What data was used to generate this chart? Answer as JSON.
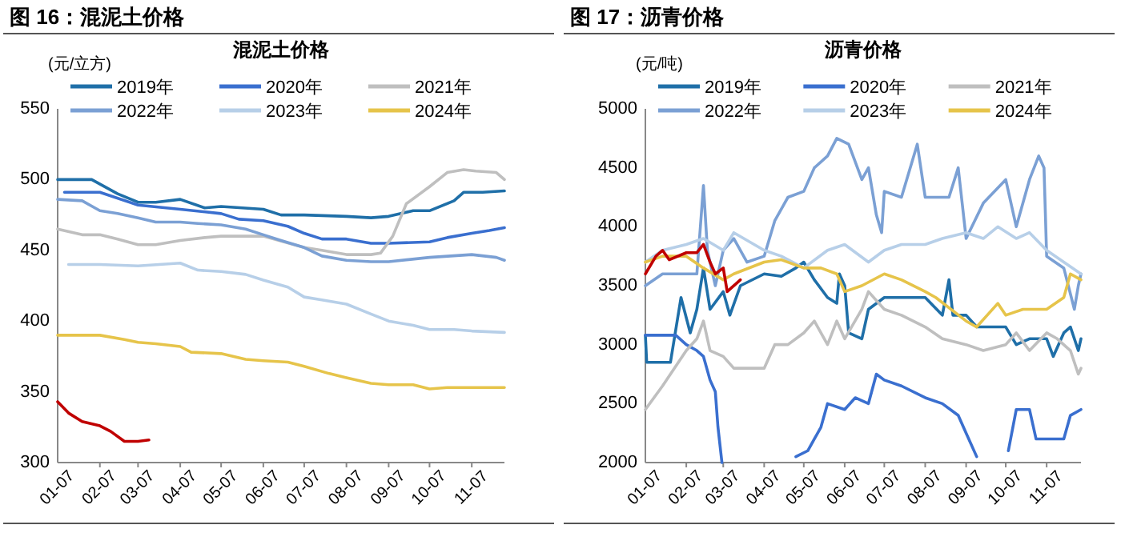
{
  "chart_data": [
    {
      "type": "line",
      "title": "图 16：混泥土价格",
      "subtitle": "混泥土价格",
      "ylabel": "(元/立方)",
      "legend": "top",
      "grid": false,
      "marker": "none",
      "line_style": "solid",
      "xlim": [
        "--01-07",
        "--12-01"
      ],
      "ylim": [
        300,
        550
      ],
      "yticks": [
        300,
        350,
        400,
        450,
        500,
        550
      ],
      "xticks": [
        {
          "value": "--01-07",
          "label": "01-07"
        },
        {
          "value": "--02-07",
          "label": "02-07"
        },
        {
          "value": "--03-07",
          "label": "03-07"
        },
        {
          "value": "--04-07",
          "label": "04-07"
        },
        {
          "value": "--05-07",
          "label": "05-07"
        },
        {
          "value": "--06-07",
          "label": "06-07"
        },
        {
          "value": "--07-07",
          "label": "07-07"
        },
        {
          "value": "--08-07",
          "label": "08-07"
        },
        {
          "value": "--09-07",
          "label": "09-07"
        },
        {
          "value": "--10-07",
          "label": "10-07"
        },
        {
          "value": "--11-07",
          "label": "11-07"
        }
      ],
      "series": [
        {
          "name": "2019年",
          "color": "#1f6fa8",
          "x": [
            "--01-07",
            "--02-01",
            "--02-20",
            "--03-07",
            "--03-20",
            "--04-07",
            "--04-25",
            "--05-07",
            "--06-07",
            "--06-20",
            "--07-07",
            "--08-07",
            "--08-25",
            "--09-07",
            "--09-25",
            "--10-07",
            "--10-25",
            "--11-01",
            "--11-15",
            "--12-01"
          ],
          "values": [
            500,
            500,
            490,
            484,
            484,
            486,
            480,
            481,
            479,
            475,
            475,
            474,
            473,
            474,
            478,
            478,
            485,
            491,
            491,
            492
          ]
        },
        {
          "name": "2020年",
          "color": "#3a6fcf",
          "x": [
            "--01-12",
            "--02-07",
            "--03-07",
            "--04-07",
            "--05-07",
            "--05-20",
            "--06-07",
            "--06-25",
            "--07-07",
            "--07-20",
            "--08-07",
            "--08-25",
            "--09-07",
            "--10-07",
            "--10-20",
            "--11-07",
            "--11-20",
            "--12-01"
          ],
          "values": [
            491,
            491,
            482,
            479,
            476,
            472,
            471,
            467,
            462,
            458,
            458,
            455,
            455,
            456,
            459,
            462,
            464,
            466
          ]
        },
        {
          "name": "2021年",
          "color": "#bfbfbf",
          "x": [
            "--01-07",
            "--01-25",
            "--02-07",
            "--02-20",
            "--03-07",
            "--03-20",
            "--04-07",
            "--04-25",
            "--05-07",
            "--06-07",
            "--07-07",
            "--07-20",
            "--08-07",
            "--08-25",
            "--09-01",
            "--09-10",
            "--09-20",
            "--10-07",
            "--10-20",
            "--11-01",
            "--11-10",
            "--11-25",
            "--12-01"
          ],
          "values": [
            465,
            461,
            461,
            458,
            454,
            454,
            457,
            459,
            460,
            460,
            452,
            450,
            447,
            447,
            448,
            460,
            483,
            495,
            505,
            507,
            506,
            505,
            500
          ]
        },
        {
          "name": "2022年",
          "color": "#7ba0d4",
          "x": [
            "--01-07",
            "--01-25",
            "--02-07",
            "--02-20",
            "--03-07",
            "--03-20",
            "--04-07",
            "--04-20",
            "--05-07",
            "--05-25",
            "--06-07",
            "--06-20",
            "--07-07",
            "--07-20",
            "--08-07",
            "--08-25",
            "--09-07",
            "--10-07",
            "--11-07",
            "--11-25",
            "--12-01"
          ],
          "values": [
            486,
            485,
            478,
            476,
            473,
            470,
            470,
            469,
            468,
            465,
            461,
            457,
            452,
            446,
            443,
            442,
            442,
            445,
            447,
            445,
            443
          ]
        },
        {
          "name": "2023年",
          "color": "#b7cfe8",
          "x": [
            "--01-15",
            "--02-07",
            "--03-07",
            "--04-07",
            "--04-20",
            "--05-07",
            "--05-25",
            "--06-07",
            "--06-25",
            "--07-07",
            "--07-20",
            "--08-07",
            "--08-25",
            "--09-07",
            "--09-25",
            "--10-07",
            "--10-25",
            "--11-07",
            "--12-01"
          ],
          "values": [
            440,
            440,
            439,
            441,
            436,
            435,
            433,
            429,
            424,
            417,
            415,
            412,
            405,
            400,
            397,
            394,
            394,
            393,
            392
          ]
        },
        {
          "name": "2024年",
          "color": "#e6c44a",
          "x": [
            "--01-07",
            "--02-07",
            "--02-25",
            "--03-07",
            "--03-20",
            "--04-07",
            "--04-15",
            "--05-07",
            "--05-25",
            "--06-07",
            "--06-25",
            "--07-07",
            "--07-25",
            "--08-07",
            "--08-25",
            "--09-07",
            "--09-25",
            "--10-07",
            "--10-20",
            "--11-07",
            "--12-01"
          ],
          "values": [
            390,
            390,
            387,
            385,
            384,
            382,
            378,
            377,
            373,
            372,
            371,
            368,
            363,
            360,
            356,
            355,
            355,
            352,
            353,
            353,
            353
          ]
        },
        {
          "color": "#c00000",
          "x": [
            "--01-07",
            "--01-15",
            "--01-25",
            "--02-07",
            "--02-15",
            "--02-25",
            "--03-07",
            "--03-15"
          ],
          "values": [
            343,
            335,
            329,
            326,
            322,
            315,
            315,
            316
          ]
        }
      ]
    },
    {
      "type": "line",
      "title": "图 17：沥青价格",
      "subtitle": "沥青价格",
      "ylabel": "(元/吨)",
      "legend": "top",
      "grid": false,
      "marker": "none",
      "line_style": "solid",
      "xlim": [
        "--01-07",
        "--12-03"
      ],
      "ylim": [
        2000,
        5000
      ],
      "yticks": [
        2000,
        2500,
        3000,
        3500,
        4000,
        4500,
        5000
      ],
      "xticks": [
        {
          "value": "--01-07",
          "label": "01-07"
        },
        {
          "value": "--02-07",
          "label": "02-07"
        },
        {
          "value": "--03-07",
          "label": "03-07"
        },
        {
          "value": "--04-07",
          "label": "04-07"
        },
        {
          "value": "--05-07",
          "label": "05-07"
        },
        {
          "value": "--06-07",
          "label": "06-07"
        },
        {
          "value": "--07-07",
          "label": "07-07"
        },
        {
          "value": "--08-07",
          "label": "08-07"
        },
        {
          "value": "--09-07",
          "label": "09-07"
        },
        {
          "value": "--10-07",
          "label": "10-07"
        },
        {
          "value": "--11-07",
          "label": "11-07"
        }
      ],
      "series": [
        {
          "name": "2019年",
          "color": "#1f6fa8",
          "x": [
            "--01-07",
            "--01-08",
            "--01-26",
            "--02-03",
            "--02-10",
            "--02-15",
            "--02-20",
            "--02-25",
            "--03-07",
            "--03-12",
            "--03-20",
            "--04-07",
            "--04-20",
            "--05-01",
            "--05-07",
            "--05-15",
            "--05-25",
            "--06-01",
            "--06-03",
            "--06-07",
            "--06-10",
            "--06-20",
            "--06-25",
            "--07-07",
            "--07-20",
            "--08-07",
            "--08-20",
            "--08-25",
            "--08-28",
            "--09-07",
            "--09-15",
            "--10-07",
            "--10-15",
            "--10-25",
            "--11-07",
            "--11-12",
            "--11-20",
            "--11-25",
            "--12-01",
            "--12-03"
          ],
          "values": [
            3080,
            2850,
            2850,
            3400,
            3100,
            3300,
            3650,
            3300,
            3450,
            3250,
            3500,
            3600,
            3580,
            3650,
            3700,
            3550,
            3400,
            3350,
            3600,
            3500,
            3100,
            3050,
            3300,
            3400,
            3400,
            3400,
            3250,
            3550,
            3250,
            3250,
            3150,
            3150,
            3000,
            3050,
            3050,
            2900,
            3100,
            3150,
            2950,
            3050
          ]
        },
        {
          "name": "2020年",
          "color": "#3a6fcf",
          "x": [
            "--01-07",
            "--01-30",
            "--02-07",
            "--02-15",
            "--02-20",
            "--02-25",
            "--03-01",
            "--03-03",
            "--03-06",
            "--03-15",
            "--04-25",
            "--05-01",
            "--05-10",
            "--05-20",
            "--05-25",
            "--06-07",
            "--06-15",
            "--06-25",
            "--07-01",
            "--07-07",
            "--07-20",
            "--08-07",
            "--08-20",
            "--09-01",
            "--09-07",
            "--09-15",
            "--09-20",
            "--10-01",
            "--10-09",
            "--10-15",
            "--10-25",
            "--10-30",
            "--11-07",
            "--11-20",
            "--11-25",
            "--12-03"
          ],
          "values": [
            3080,
            3080,
            3000,
            2950,
            2900,
            2700,
            2600,
            2300,
            2000,
            null,
            null,
            2050,
            2100,
            2300,
            2500,
            2450,
            2550,
            2500,
            2750,
            2700,
            2650,
            2550,
            2500,
            2400,
            2250,
            2050,
            null,
            null,
            2100,
            2450,
            2450,
            2200,
            2200,
            2200,
            2400,
            2450
          ]
        },
        {
          "name": "2021年",
          "color": "#bfbfbf",
          "x": [
            "--01-07",
            "--01-20",
            "--02-07",
            "--02-15",
            "--02-20",
            "--02-25",
            "--03-07",
            "--03-15",
            "--03-25",
            "--04-07",
            "--04-15",
            "--04-25",
            "--05-07",
            "--05-15",
            "--05-25",
            "--06-01",
            "--06-07",
            "--06-20",
            "--06-25",
            "--07-07",
            "--07-20",
            "--08-07",
            "--08-20",
            "--09-07",
            "--09-20",
            "--10-07",
            "--10-15",
            "--10-25",
            "--11-07",
            "--11-15",
            "--11-25",
            "--12-01",
            "--12-03"
          ],
          "values": [
            2450,
            2650,
            2950,
            3050,
            3200,
            2950,
            2900,
            2800,
            2800,
            2800,
            3000,
            3000,
            3100,
            3200,
            3000,
            3200,
            3050,
            3300,
            3450,
            3300,
            3250,
            3150,
            3050,
            3000,
            2950,
            3000,
            3100,
            2950,
            3100,
            3050,
            2950,
            2750,
            2800
          ]
        },
        {
          "name": "2022年",
          "color": "#7ba0d4",
          "x": [
            "--01-07",
            "--01-20",
            "--02-07",
            "--02-15",
            "--02-20",
            "--02-23",
            "--03-01",
            "--03-07",
            "--03-15",
            "--03-25",
            "--04-07",
            "--04-15",
            "--04-25",
            "--05-07",
            "--05-15",
            "--05-25",
            "--06-01",
            "--06-10",
            "--06-20",
            "--06-25",
            "--07-01",
            "--07-05",
            "--07-07",
            "--07-20",
            "--08-01",
            "--08-07",
            "--08-25",
            "--09-01",
            "--09-07",
            "--09-20",
            "--10-07",
            "--10-15",
            "--10-25",
            "--11-01",
            "--11-05",
            "--11-07",
            "--11-20",
            "--11-28",
            "--12-01",
            "--12-03"
          ],
          "values": [
            3500,
            3600,
            3600,
            3600,
            4350,
            3800,
            3500,
            3800,
            3900,
            3700,
            3750,
            4050,
            4250,
            4300,
            4500,
            4600,
            4750,
            4700,
            4400,
            4500,
            4100,
            3950,
            4300,
            4250,
            4700,
            4250,
            4250,
            4500,
            3900,
            4200,
            4400,
            4000,
            4400,
            4600,
            4500,
            3750,
            3650,
            3300,
            3500,
            3600
          ]
        },
        {
          "name": "2023年",
          "color": "#b7cfe8",
          "x": [
            "--01-07",
            "--01-20",
            "--02-07",
            "--02-20",
            "--03-07",
            "--03-15",
            "--04-07",
            "--04-20",
            "--05-07",
            "--05-25",
            "--06-07",
            "--06-25",
            "--07-07",
            "--07-20",
            "--08-07",
            "--08-20",
            "--09-07",
            "--09-20",
            "--10-01",
            "--10-15",
            "--10-25",
            "--11-07",
            "--11-20",
            "--12-03"
          ],
          "values": [
            3700,
            3800,
            3850,
            3900,
            3800,
            3950,
            3800,
            3750,
            3650,
            3800,
            3850,
            3700,
            3800,
            3850,
            3850,
            3900,
            3950,
            3900,
            4000,
            3900,
            3950,
            3800,
            3700,
            3600
          ]
        },
        {
          "name": "2024年",
          "color": "#e6c44a",
          "x": [
            "--01-07",
            "--01-20",
            "--02-07",
            "--02-20",
            "--03-07",
            "--03-15",
            "--04-07",
            "--04-20",
            "--05-07",
            "--05-20",
            "--06-01",
            "--06-07",
            "--06-20",
            "--07-07",
            "--07-20",
            "--08-07",
            "--08-15",
            "--09-07",
            "--09-15",
            "--10-01",
            "--10-07",
            "--10-20",
            "--11-07",
            "--11-20",
            "--11-25",
            "--12-03"
          ],
          "values": [
            3700,
            3750,
            3750,
            3650,
            3550,
            3600,
            3700,
            3720,
            3650,
            3650,
            3600,
            3450,
            3500,
            3600,
            3550,
            3450,
            3400,
            3200,
            3150,
            3350,
            3250,
            3300,
            3300,
            3400,
            3600,
            3550
          ]
        },
        {
          "color": "#c00000",
          "x": [
            "--01-07",
            "--01-15",
            "--01-20",
            "--01-25",
            "--02-07",
            "--02-15",
            "--02-20",
            "--02-25",
            "--03-01",
            "--03-07",
            "--03-10",
            "--03-20"
          ],
          "values": [
            3600,
            3750,
            3800,
            3720,
            3780,
            3780,
            3850,
            3700,
            3600,
            3650,
            3450,
            3550
          ]
        }
      ]
    }
  ]
}
